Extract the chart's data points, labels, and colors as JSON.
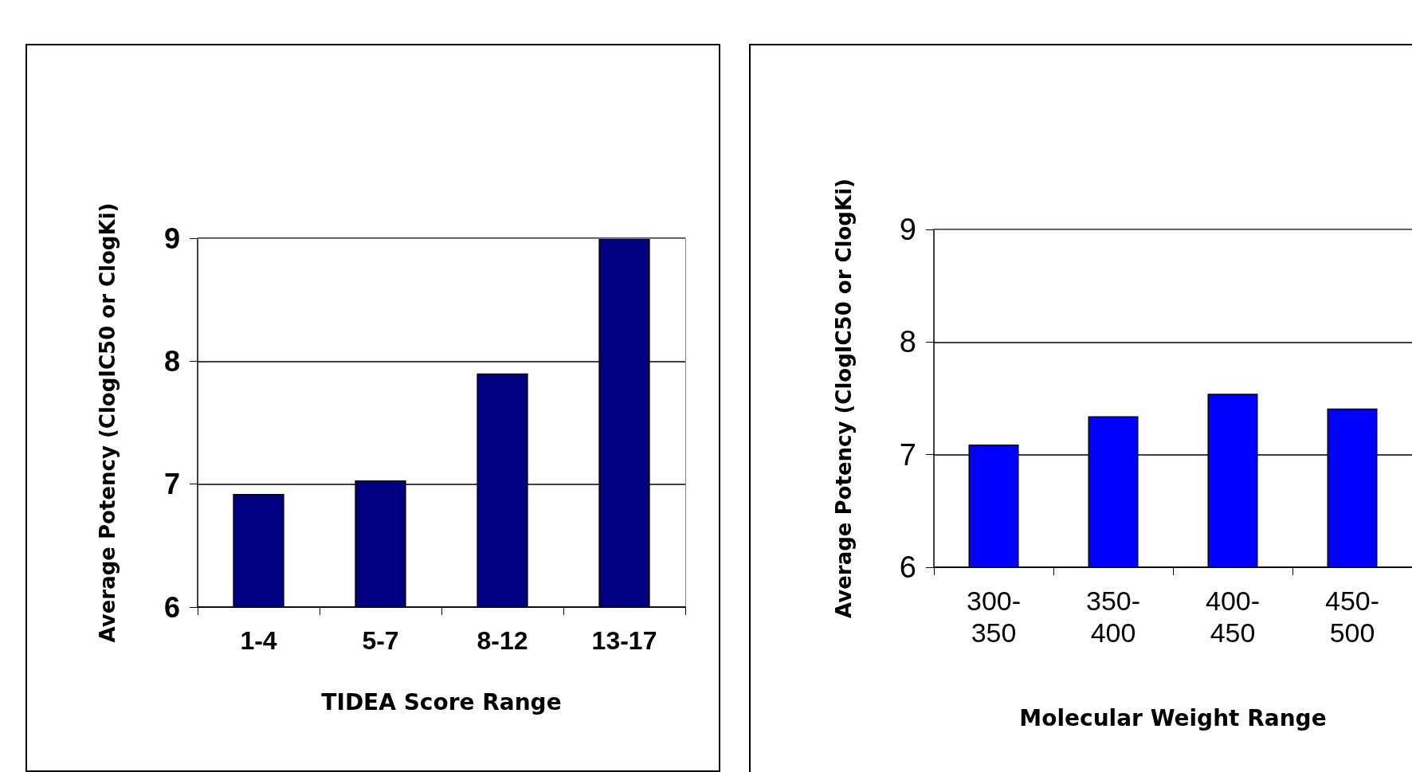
{
  "chart_data": [
    {
      "type": "bar",
      "xlabel": "TIDEA Score Range",
      "ylabel": "Average Potency (ClogIC50 or ClogKi)",
      "categories": [
        "1-4",
        "5-7",
        "8-12",
        "13-17"
      ],
      "series": [
        {
          "color": "#000080",
          "values": [
            6.92,
            7.03,
            7.9,
            9.0
          ]
        }
      ],
      "ylim": [
        6,
        9
      ],
      "yticks": [
        6,
        7,
        8,
        9
      ],
      "grid": "y"
    },
    {
      "type": "bar",
      "xlabel": "Molecular Weight Range",
      "ylabel": "Average Potency (ClogIC50 or ClogKi)",
      "categories": [
        "300-350",
        "350-400",
        "400-450",
        "450-500"
      ],
      "series": [
        {
          "color": "#0000ff",
          "values": [
            7.09,
            7.34,
            7.54,
            7.41
          ]
        }
      ],
      "ylim": [
        6,
        9
      ],
      "yticks": [
        6,
        7,
        8,
        9
      ],
      "grid": "y"
    }
  ]
}
